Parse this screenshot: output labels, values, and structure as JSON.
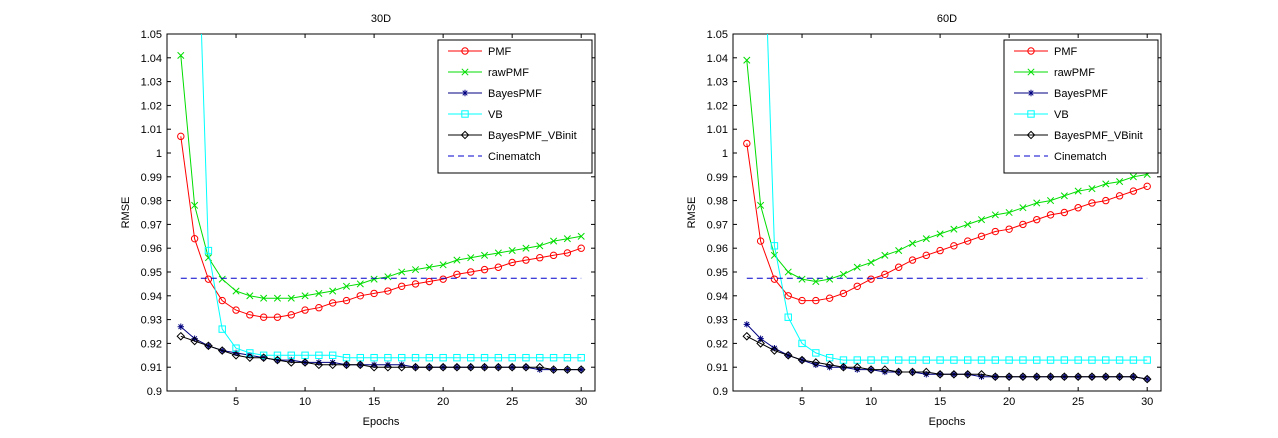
{
  "chart_data": [
    {
      "type": "line",
      "title": "30D",
      "xlabel": "Epochs",
      "ylabel": "RMSE",
      "xlim": [
        0,
        31
      ],
      "ylim": [
        0.9,
        1.05
      ],
      "xticks": [
        "5",
        "10",
        "15",
        "20",
        "25",
        "30"
      ],
      "yticks": [
        "0.9",
        "0.91",
        "0.92",
        "0.93",
        "0.94",
        "0.95",
        "0.96",
        "0.97",
        "0.98",
        "0.99",
        "1",
        "1.01",
        "1.02",
        "1.03",
        "1.04",
        "1.05"
      ],
      "legend_position": "top-right",
      "x": [
        1,
        2,
        3,
        4,
        5,
        6,
        7,
        8,
        9,
        10,
        11,
        12,
        13,
        14,
        15,
        16,
        17,
        18,
        19,
        20,
        21,
        22,
        23,
        24,
        25,
        26,
        27,
        28,
        29,
        30
      ],
      "series": [
        {
          "name": "PMF",
          "color": "#ff0000",
          "marker": "circle",
          "dash": "solid",
          "values": [
            1.007,
            0.964,
            0.947,
            0.938,
            0.934,
            0.932,
            0.931,
            0.931,
            0.932,
            0.934,
            0.935,
            0.937,
            0.938,
            0.94,
            0.941,
            0.942,
            0.944,
            0.945,
            0.946,
            0.947,
            0.949,
            0.95,
            0.951,
            0.952,
            0.954,
            0.955,
            0.956,
            0.957,
            0.958,
            0.96
          ]
        },
        {
          "name": "rawPMF",
          "color": "#00dd00",
          "marker": "x",
          "dash": "solid",
          "values": [
            1.041,
            0.978,
            0.956,
            0.947,
            0.942,
            0.94,
            0.939,
            0.939,
            0.939,
            0.94,
            0.941,
            0.942,
            0.944,
            0.945,
            0.947,
            0.948,
            0.95,
            0.951,
            0.952,
            0.953,
            0.955,
            0.956,
            0.957,
            0.958,
            0.959,
            0.96,
            0.961,
            0.963,
            0.964,
            0.965
          ]
        },
        {
          "name": "BayesPMF",
          "color": "#000080",
          "marker": "star",
          "dash": "solid",
          "values": [
            0.927,
            0.922,
            0.919,
            0.917,
            0.916,
            0.915,
            0.914,
            0.913,
            0.913,
            0.912,
            0.912,
            0.912,
            0.911,
            0.911,
            0.911,
            0.911,
            0.911,
            0.91,
            0.91,
            0.91,
            0.91,
            0.91,
            0.91,
            0.91,
            0.91,
            0.91,
            0.909,
            0.909,
            0.909,
            0.909
          ]
        },
        {
          "name": "VB",
          "color": "#00ffff",
          "marker": "square",
          "dash": "solid",
          "values": [
            null,
            null,
            0.959,
            0.926,
            0.918,
            0.916,
            0.915,
            0.915,
            0.915,
            0.915,
            0.915,
            0.915,
            0.914,
            0.914,
            0.914,
            0.914,
            0.914,
            0.914,
            0.914,
            0.914,
            0.914,
            0.914,
            0.914,
            0.914,
            0.914,
            0.914,
            0.914,
            0.914,
            0.914,
            0.914
          ],
          "steep_from": [
            2.5,
            1.05
          ]
        },
        {
          "name": "BayesPMF_VBinit",
          "color": "#000000",
          "marker": "diamond",
          "dash": "solid",
          "values": [
            0.923,
            0.921,
            0.919,
            0.917,
            0.915,
            0.914,
            0.914,
            0.913,
            0.912,
            0.912,
            0.911,
            0.911,
            0.911,
            0.911,
            0.91,
            0.91,
            0.91,
            0.91,
            0.91,
            0.91,
            0.91,
            0.91,
            0.91,
            0.91,
            0.91,
            0.91,
            0.91,
            0.909,
            0.909,
            0.909
          ]
        },
        {
          "name": "Cinematch",
          "color": "#0000cc",
          "marker": "none",
          "dash": "dashed",
          "hline": 0.9474,
          "xrange": [
            1,
            30
          ]
        }
      ]
    },
    {
      "type": "line",
      "title": "60D",
      "xlabel": "Epochs",
      "ylabel": "RMSE",
      "xlim": [
        0,
        31
      ],
      "ylim": [
        0.9,
        1.05
      ],
      "xticks": [
        "5",
        "10",
        "15",
        "20",
        "25",
        "30"
      ],
      "yticks": [
        "0.9",
        "0.91",
        "0.92",
        "0.93",
        "0.94",
        "0.95",
        "0.96",
        "0.97",
        "0.98",
        "0.99",
        "1",
        "1.01",
        "1.02",
        "1.03",
        "1.04",
        "1.05"
      ],
      "legend_position": "top-right",
      "x": [
        1,
        2,
        3,
        4,
        5,
        6,
        7,
        8,
        9,
        10,
        11,
        12,
        13,
        14,
        15,
        16,
        17,
        18,
        19,
        20,
        21,
        22,
        23,
        24,
        25,
        26,
        27,
        28,
        29,
        30
      ],
      "series": [
        {
          "name": "PMF",
          "color": "#ff0000",
          "marker": "circle",
          "dash": "solid",
          "values": [
            1.004,
            0.963,
            0.947,
            0.94,
            0.938,
            0.938,
            0.939,
            0.941,
            0.944,
            0.947,
            0.949,
            0.952,
            0.955,
            0.957,
            0.959,
            0.961,
            0.963,
            0.965,
            0.967,
            0.968,
            0.97,
            0.972,
            0.974,
            0.975,
            0.977,
            0.979,
            0.98,
            0.982,
            0.984,
            0.986
          ]
        },
        {
          "name": "rawPMF",
          "color": "#00dd00",
          "marker": "x",
          "dash": "solid",
          "values": [
            1.039,
            0.978,
            0.957,
            0.95,
            0.947,
            0.946,
            0.947,
            0.949,
            0.952,
            0.954,
            0.957,
            0.959,
            0.962,
            0.964,
            0.966,
            0.968,
            0.97,
            0.972,
            0.974,
            0.975,
            0.977,
            0.979,
            0.98,
            0.982,
            0.984,
            0.985,
            0.987,
            0.988,
            0.99,
            0.991
          ]
        },
        {
          "name": "BayesPMF",
          "color": "#000080",
          "marker": "star",
          "dash": "solid",
          "values": [
            0.928,
            0.922,
            0.918,
            0.915,
            0.913,
            0.911,
            0.91,
            0.91,
            0.909,
            0.909,
            0.908,
            0.908,
            0.908,
            0.907,
            0.907,
            0.907,
            0.907,
            0.906,
            0.906,
            0.906,
            0.906,
            0.906,
            0.906,
            0.906,
            0.906,
            0.906,
            0.906,
            0.906,
            0.906,
            0.905
          ]
        },
        {
          "name": "VB",
          "color": "#00ffff",
          "marker": "square",
          "dash": "solid",
          "values": [
            null,
            null,
            0.961,
            0.931,
            0.92,
            0.916,
            0.914,
            0.913,
            0.913,
            0.913,
            0.913,
            0.913,
            0.913,
            0.913,
            0.913,
            0.913,
            0.913,
            0.913,
            0.913,
            0.913,
            0.913,
            0.913,
            0.913,
            0.913,
            0.913,
            0.913,
            0.913,
            0.913,
            0.913,
            0.913
          ],
          "steep_from": [
            2.5,
            1.05
          ]
        },
        {
          "name": "BayesPMF_VBinit",
          "color": "#000000",
          "marker": "diamond",
          "dash": "solid",
          "values": [
            0.923,
            0.92,
            0.917,
            0.915,
            0.913,
            0.912,
            0.911,
            0.91,
            0.91,
            0.909,
            0.909,
            0.908,
            0.908,
            0.908,
            0.907,
            0.907,
            0.907,
            0.907,
            0.906,
            0.906,
            0.906,
            0.906,
            0.906,
            0.906,
            0.906,
            0.906,
            0.906,
            0.906,
            0.906,
            0.905
          ]
        },
        {
          "name": "Cinematch",
          "color": "#0000cc",
          "marker": "none",
          "dash": "dashed",
          "hline": 0.9474,
          "xrange": [
            1,
            30
          ]
        }
      ]
    }
  ]
}
